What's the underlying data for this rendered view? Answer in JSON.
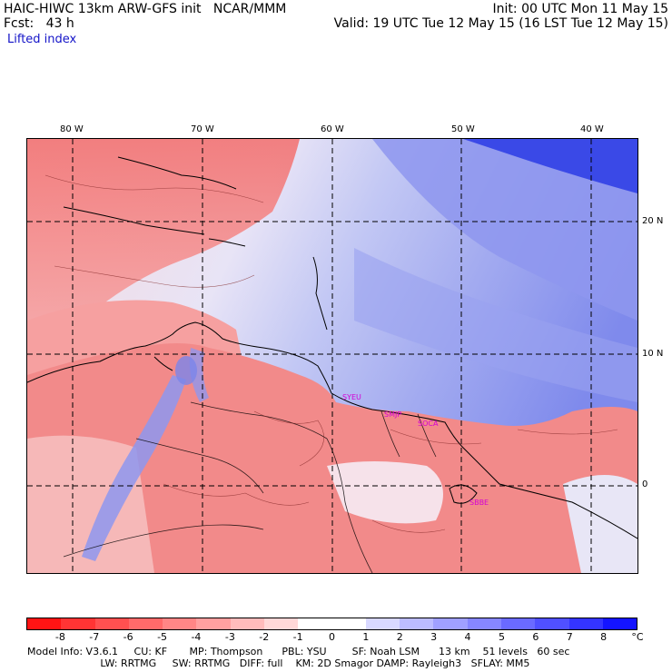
{
  "header": {
    "line1_left": "HAIC-HIWC 13km ARW-GFS init   NCAR/MMM",
    "line2_left": "Fcst:   43 h",
    "line3_left": "Lifted index",
    "line1_right": "Init: 00 UTC Mon 11 May 15",
    "line2_right": "Valid: 19 UTC Tue 12 May 15 (16 LST Tue 12 May 15)"
  },
  "map": {
    "lon_ticks": [
      "80 W",
      "70 W",
      "60 W",
      "50 W",
      "40 W"
    ],
    "lat_ticks": [
      "20 N",
      "10 N",
      "0"
    ],
    "station_labels": [
      "SYEU",
      "SMJP",
      "SOCA",
      "SBBE"
    ],
    "colors": {
      "strong_red": "#f27474",
      "light_red": "#f6b0b0",
      "neutral": "#f5eef2",
      "light_blue": "#c3c8f4",
      "blue": "#8e96ee",
      "deep_blue": "#3140e6"
    }
  },
  "colorbar": {
    "labels": [
      "-8",
      "-7",
      "-6",
      "-5",
      "-4",
      "-3",
      "-2",
      "-1",
      "0",
      "1",
      "2",
      "3",
      "4",
      "5",
      "6",
      "7",
      "8"
    ],
    "unit": "°C",
    "colors": [
      "#ff1414",
      "#ff3434",
      "#ff5050",
      "#ff6a6a",
      "#ff8686",
      "#ffa0a0",
      "#ffbcbc",
      "#ffd8d8",
      "#ffffff",
      "#ffffff",
      "#d8d8ff",
      "#bcbcff",
      "#a0a0ff",
      "#8686ff",
      "#6a6aff",
      "#5050ff",
      "#3434ff",
      "#1414ff"
    ]
  },
  "footer": {
    "line1": "Model Info: V3.6.1     CU: KF       MP: Thompson      PBL: YSU        SF: Noah LSM      13 km    51 levels   60 sec",
    "line2": "                       LW: RRTMG     SW: RRTMG   DIFF: full    KM: 2D Smagor DAMP: Rayleigh3   SFLAY: MM5"
  }
}
